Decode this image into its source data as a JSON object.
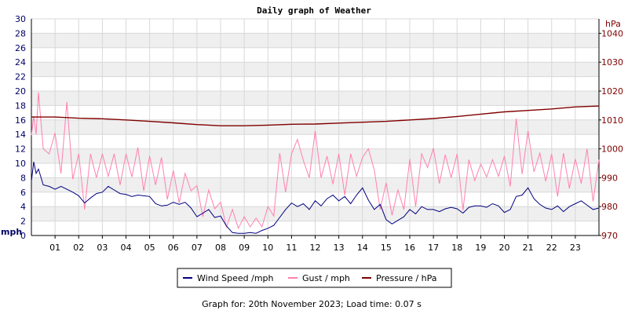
{
  "colors": {
    "background": "#ffffff",
    "band": "#efefef",
    "grid": "#d8d8d8",
    "axis": "#000000",
    "left_axis_text": "#000066",
    "right_axis_text": "#800000",
    "wind": "#000080",
    "gust": "#ff80b0",
    "pressure": "#800000"
  },
  "chart_data": {
    "type": "line",
    "title": "Daily graph of Weather",
    "left_axis": {
      "unit_label": "mph",
      "range": [
        0,
        30
      ],
      "ticks": [
        0,
        2,
        4,
        6,
        8,
        10,
        12,
        14,
        16,
        18,
        20,
        22,
        24,
        26,
        28,
        30
      ]
    },
    "right_axis": {
      "unit_label": "hPa",
      "range": [
        970,
        1045
      ],
      "ticks": [
        970,
        980,
        990,
        1000,
        1010,
        1020,
        1030,
        1040
      ]
    },
    "x_axis": {
      "range_hours": [
        0,
        24
      ],
      "tick_labels": [
        "01",
        "02",
        "03",
        "04",
        "05",
        "06",
        "07",
        "08",
        "09",
        "10",
        "11",
        "12",
        "13",
        "14",
        "15",
        "16",
        "17",
        "18",
        "19",
        "20",
        "21",
        "22",
        "23"
      ]
    },
    "grid": true,
    "alternating_bands": true,
    "legend_position": "bottom-center",
    "series": [
      {
        "name": "Wind Speed /mph",
        "axis": "left",
        "x": [
          0,
          0.1,
          0.2,
          0.3,
          0.5,
          0.75,
          1,
          1.25,
          1.5,
          1.75,
          2,
          2.25,
          2.5,
          2.75,
          3,
          3.25,
          3.5,
          3.75,
          4,
          4.25,
          4.5,
          4.75,
          5,
          5.25,
          5.5,
          5.75,
          6,
          6.25,
          6.5,
          6.75,
          7,
          7.25,
          7.5,
          7.75,
          8,
          8.25,
          8.5,
          8.75,
          9,
          9.25,
          9.5,
          9.75,
          10,
          10.25,
          10.5,
          10.75,
          11,
          11.25,
          11.5,
          11.75,
          12,
          12.25,
          12.5,
          12.75,
          13,
          13.25,
          13.5,
          13.75,
          14,
          14.25,
          14.5,
          14.75,
          15,
          15.25,
          15.5,
          15.75,
          16,
          16.25,
          16.5,
          16.75,
          17,
          17.25,
          17.5,
          17.75,
          18,
          18.25,
          18.5,
          18.75,
          19,
          19.25,
          19.5,
          19.75,
          20,
          20.25,
          20.5,
          20.75,
          21,
          21.25,
          21.5,
          21.75,
          22,
          22.25,
          22.5,
          22.75,
          23,
          23.25,
          23.5,
          23.75,
          24
        ],
        "values": [
          7.5,
          10.2,
          8.6,
          9.2,
          7.0,
          6.8,
          6.4,
          6.8,
          6.4,
          6.0,
          5.5,
          4.5,
          5.2,
          5.8,
          6.0,
          6.8,
          6.3,
          5.8,
          5.7,
          5.4,
          5.6,
          5.5,
          5.4,
          4.4,
          4.1,
          4.2,
          4.6,
          4.3,
          4.6,
          3.8,
          2.6,
          3.1,
          3.6,
          2.5,
          2.7,
          1.3,
          0.4,
          0.3,
          0.3,
          0.4,
          0.3,
          0.7,
          1.0,
          1.4,
          2.5,
          3.6,
          4.5,
          4.0,
          4.4,
          3.6,
          4.8,
          4.1,
          5.1,
          5.6,
          4.8,
          5.4,
          4.4,
          5.6,
          6.6,
          4.9,
          3.6,
          4.3,
          2.2,
          1.6,
          2.1,
          2.6,
          3.6,
          3.0,
          4.0,
          3.6,
          3.6,
          3.3,
          3.7,
          3.9,
          3.7,
          3.1,
          3.9,
          4.1,
          4.1,
          3.9,
          4.4,
          4.1,
          3.2,
          3.6,
          5.4,
          5.6,
          6.6,
          5.1,
          4.3,
          3.8,
          3.6,
          4.1,
          3.3,
          4.0,
          4.4,
          4.8,
          4.2,
          3.6,
          3.8
        ]
      },
      {
        "name": "Gust / mph",
        "axis": "left",
        "x": [
          0,
          0.1,
          0.2,
          0.3,
          0.5,
          0.75,
          1,
          1.25,
          1.5,
          1.75,
          2,
          2.25,
          2.5,
          2.75,
          3,
          3.25,
          3.5,
          3.75,
          4,
          4.25,
          4.5,
          4.75,
          5,
          5.25,
          5.5,
          5.75,
          6,
          6.25,
          6.5,
          6.75,
          7,
          7.25,
          7.5,
          7.75,
          8,
          8.25,
          8.5,
          8.75,
          9,
          9.25,
          9.5,
          9.75,
          10,
          10.25,
          10.5,
          10.75,
          11,
          11.25,
          11.5,
          11.75,
          12,
          12.25,
          12.5,
          12.75,
          13,
          13.25,
          13.5,
          13.75,
          14,
          14.25,
          14.5,
          14.75,
          15,
          15.25,
          15.5,
          15.75,
          16,
          16.25,
          16.5,
          16.75,
          17,
          17.25,
          17.5,
          17.75,
          18,
          18.25,
          18.5,
          18.75,
          19,
          19.25,
          19.5,
          19.75,
          20,
          20.25,
          20.5,
          20.75,
          21,
          21.25,
          21.5,
          21.75,
          22,
          22.25,
          22.5,
          22.75,
          23,
          23.25,
          23.5,
          23.75,
          24
        ],
        "values": [
          13.9,
          16.5,
          14.0,
          19.8,
          12.0,
          11.3,
          14.2,
          8.6,
          18.5,
          7.8,
          11.3,
          3.6,
          11.3,
          8.0,
          11.3,
          8.2,
          11.3,
          7.0,
          11.3,
          8.1,
          12.2,
          6.2,
          11.0,
          7.0,
          10.8,
          5.0,
          9.0,
          4.5,
          8.6,
          6.2,
          6.9,
          2.6,
          6.3,
          3.7,
          4.6,
          1.2,
          3.6,
          1.0,
          2.6,
          1.2,
          2.4,
          1.2,
          4.0,
          2.7,
          11.4,
          6.0,
          11.3,
          13.3,
          10.4,
          8.0,
          14.5,
          8.0,
          11.0,
          7.1,
          11.3,
          5.6,
          11.3,
          8.2,
          10.8,
          12.0,
          9.1,
          3.6,
          7.3,
          2.8,
          6.3,
          3.6,
          10.6,
          4.0,
          11.3,
          9.4,
          12.1,
          7.2,
          11.2,
          8.0,
          11.3,
          3.5,
          10.5,
          7.6,
          9.9,
          8.1,
          10.5,
          8.2,
          11.0,
          6.8,
          16.2,
          8.5,
          14.5,
          8.8,
          11.4,
          7.5,
          11.3,
          5.4,
          11.4,
          6.5,
          10.6,
          7.2,
          12.0,
          4.7,
          10.5
        ]
      },
      {
        "name": "Pressure / hPa",
        "axis": "right",
        "x": [
          0,
          1,
          2,
          3,
          4,
          5,
          6,
          7,
          8,
          9,
          10,
          11,
          12,
          13,
          14,
          15,
          16,
          17,
          18,
          19,
          20,
          21,
          22,
          23,
          24
        ],
        "values": [
          1011,
          1011,
          1010.6,
          1010.4,
          1010,
          1009.5,
          1009,
          1008.4,
          1008,
          1008,
          1008.2,
          1008.5,
          1008.6,
          1008.9,
          1009.2,
          1009.5,
          1010,
          1010.5,
          1011.2,
          1012,
          1012.8,
          1013.3,
          1013.8,
          1014.5,
          1014.8
        ]
      }
    ]
  },
  "footer": "Graph for: 20th November 2023; Load time: 0.07 s"
}
